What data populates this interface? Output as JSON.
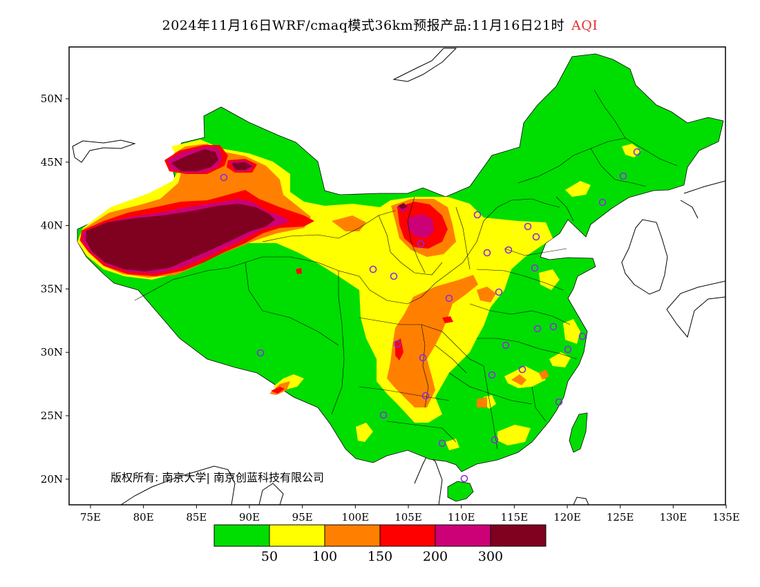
{
  "title": {
    "main": "2024年11月16日WRF/cmaq模式36km预报产品:11月16日21时",
    "variable": "AQI"
  },
  "axes": {
    "lon_ticks": [
      "75E",
      "80E",
      "85E",
      "90E",
      "95E",
      "100E",
      "105E",
      "110E",
      "115E",
      "120E",
      "125E",
      "130E",
      "135E"
    ],
    "lat_ticks": [
      "50N",
      "45N",
      "40N",
      "35N",
      "30N",
      "25N",
      "20N"
    ]
  },
  "copyright": "版权所有: 南京大学| 南京创蓝科技有限公司",
  "colorbar": {
    "colors": [
      "#00dd00",
      "#ffff00",
      "#ff8000",
      "#ff0000",
      "#cc0077",
      "#800020"
    ],
    "labels": [
      "50",
      "100",
      "150",
      "200",
      "300"
    ]
  },
  "colors": {
    "ocean": "#ffffff",
    "good": "#00dd00",
    "moderate": "#ffff00",
    "unhealthy_sensitive": "#ff8000",
    "unhealthy": "#ff0000",
    "very_unhealthy": "#cc0077",
    "hazardous": "#800020",
    "station_marker": "#8a2be2"
  }
}
